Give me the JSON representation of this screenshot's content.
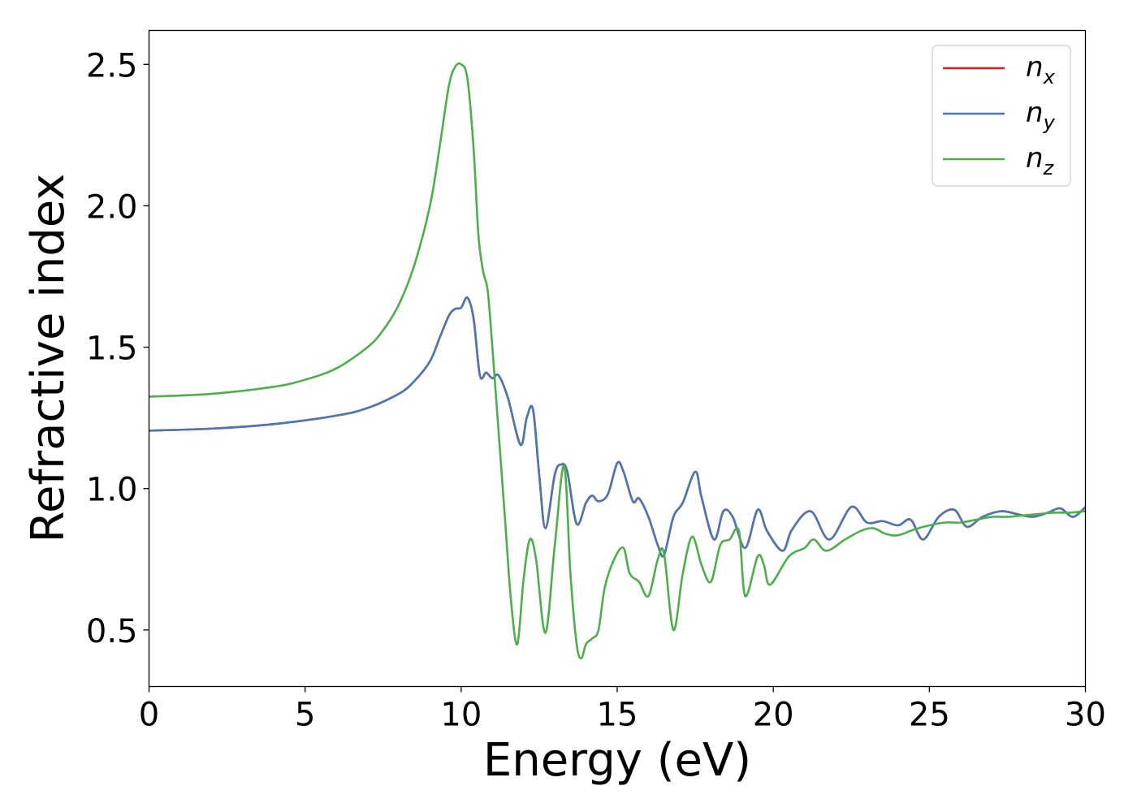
{
  "chart_data": {
    "type": "line",
    "xlabel": "Energy (eV)",
    "ylabel": "Refractive index",
    "xlim": [
      0,
      30
    ],
    "ylim": [
      0.3,
      2.62
    ],
    "xticks": [
      "0",
      "5",
      "10",
      "15",
      "20",
      "25",
      "30"
    ],
    "yticks": [
      "0.5",
      "1.0",
      "1.5",
      "2.0",
      "2.5"
    ],
    "grid": false,
    "legend_position": "top-right",
    "series": [
      {
        "name": "n",
        "subscript": "x",
        "color": "#e41a1c",
        "points": [
          [
            0,
            1.205
          ],
          [
            2,
            1.212
          ],
          [
            4,
            1.228
          ],
          [
            6,
            1.258
          ],
          [
            7,
            1.285
          ],
          [
            8,
            1.335
          ],
          [
            8.5,
            1.38
          ],
          [
            9,
            1.45
          ],
          [
            9.3,
            1.53
          ],
          [
            9.6,
            1.61
          ],
          [
            9.8,
            1.635
          ],
          [
            10,
            1.64
          ],
          [
            10.2,
            1.675
          ],
          [
            10.4,
            1.6
          ],
          [
            10.6,
            1.4
          ],
          [
            10.8,
            1.41
          ],
          [
            11,
            1.39
          ],
          [
            11.2,
            1.4
          ],
          [
            11.5,
            1.32
          ],
          [
            11.9,
            1.155
          ],
          [
            12.1,
            1.25
          ],
          [
            12.3,
            1.28
          ],
          [
            12.5,
            1.05
          ],
          [
            12.7,
            0.86
          ],
          [
            13,
            1.05
          ],
          [
            13.2,
            1.085
          ],
          [
            13.4,
            1.06
          ],
          [
            13.7,
            0.875
          ],
          [
            14,
            0.95
          ],
          [
            14.2,
            0.975
          ],
          [
            14.4,
            0.955
          ],
          [
            14.7,
            0.98
          ],
          [
            15,
            1.09
          ],
          [
            15.2,
            1.06
          ],
          [
            15.5,
            0.955
          ],
          [
            15.7,
            0.965
          ],
          [
            16,
            0.9
          ],
          [
            16.3,
            0.8
          ],
          [
            16.5,
            0.765
          ],
          [
            16.8,
            0.9
          ],
          [
            17.1,
            0.95
          ],
          [
            17.5,
            1.06
          ],
          [
            17.7,
            0.97
          ],
          [
            18.1,
            0.82
          ],
          [
            18.4,
            0.92
          ],
          [
            18.7,
            0.9
          ],
          [
            19.1,
            0.79
          ],
          [
            19.5,
            0.925
          ],
          [
            19.8,
            0.85
          ],
          [
            20.3,
            0.78
          ],
          [
            20.6,
            0.855
          ],
          [
            21.2,
            0.92
          ],
          [
            21.8,
            0.82
          ],
          [
            22.5,
            0.935
          ],
          [
            23,
            0.88
          ],
          [
            23.5,
            0.885
          ],
          [
            24,
            0.87
          ],
          [
            24.4,
            0.89
          ],
          [
            24.8,
            0.82
          ],
          [
            25.3,
            0.9
          ],
          [
            25.8,
            0.925
          ],
          [
            26.2,
            0.865
          ],
          [
            26.7,
            0.9
          ],
          [
            27.3,
            0.92
          ],
          [
            27.8,
            0.91
          ],
          [
            28.3,
            0.9
          ],
          [
            28.8,
            0.915
          ],
          [
            29.2,
            0.93
          ],
          [
            29.6,
            0.9
          ],
          [
            30,
            0.935
          ]
        ]
      },
      {
        "name": "n",
        "subscript": "y",
        "color": "#4a78b0",
        "points": [
          [
            0,
            1.205
          ],
          [
            2,
            1.212
          ],
          [
            4,
            1.228
          ],
          [
            6,
            1.258
          ],
          [
            7,
            1.285
          ],
          [
            8,
            1.335
          ],
          [
            8.5,
            1.38
          ],
          [
            9,
            1.45
          ],
          [
            9.3,
            1.53
          ],
          [
            9.6,
            1.61
          ],
          [
            9.8,
            1.635
          ],
          [
            10,
            1.64
          ],
          [
            10.2,
            1.675
          ],
          [
            10.4,
            1.6
          ],
          [
            10.6,
            1.4
          ],
          [
            10.8,
            1.41
          ],
          [
            11,
            1.39
          ],
          [
            11.2,
            1.4
          ],
          [
            11.5,
            1.32
          ],
          [
            11.9,
            1.155
          ],
          [
            12.1,
            1.25
          ],
          [
            12.3,
            1.28
          ],
          [
            12.5,
            1.05
          ],
          [
            12.7,
            0.86
          ],
          [
            13,
            1.05
          ],
          [
            13.2,
            1.085
          ],
          [
            13.4,
            1.06
          ],
          [
            13.7,
            0.875
          ],
          [
            14,
            0.95
          ],
          [
            14.2,
            0.975
          ],
          [
            14.4,
            0.955
          ],
          [
            14.7,
            0.98
          ],
          [
            15,
            1.09
          ],
          [
            15.2,
            1.06
          ],
          [
            15.5,
            0.955
          ],
          [
            15.7,
            0.965
          ],
          [
            16,
            0.9
          ],
          [
            16.3,
            0.8
          ],
          [
            16.5,
            0.765
          ],
          [
            16.8,
            0.9
          ],
          [
            17.1,
            0.95
          ],
          [
            17.5,
            1.06
          ],
          [
            17.7,
            0.97
          ],
          [
            18.1,
            0.82
          ],
          [
            18.4,
            0.92
          ],
          [
            18.7,
            0.9
          ],
          [
            19.1,
            0.79
          ],
          [
            19.5,
            0.925
          ],
          [
            19.8,
            0.85
          ],
          [
            20.3,
            0.78
          ],
          [
            20.6,
            0.855
          ],
          [
            21.2,
            0.92
          ],
          [
            21.8,
            0.82
          ],
          [
            22.5,
            0.935
          ],
          [
            23,
            0.88
          ],
          [
            23.5,
            0.885
          ],
          [
            24,
            0.87
          ],
          [
            24.4,
            0.89
          ],
          [
            24.8,
            0.82
          ],
          [
            25.3,
            0.9
          ],
          [
            25.8,
            0.925
          ],
          [
            26.2,
            0.865
          ],
          [
            26.7,
            0.9
          ],
          [
            27.3,
            0.92
          ],
          [
            27.8,
            0.91
          ],
          [
            28.3,
            0.9
          ],
          [
            28.8,
            0.915
          ],
          [
            29.2,
            0.93
          ],
          [
            29.6,
            0.9
          ],
          [
            30,
            0.935
          ]
        ]
      },
      {
        "name": "n",
        "subscript": "z",
        "color": "#4daf4a",
        "points": [
          [
            0,
            1.325
          ],
          [
            2,
            1.335
          ],
          [
            4,
            1.36
          ],
          [
            5,
            1.385
          ],
          [
            6,
            1.425
          ],
          [
            7,
            1.5
          ],
          [
            7.5,
            1.56
          ],
          [
            8,
            1.65
          ],
          [
            8.5,
            1.79
          ],
          [
            9,
            2.0
          ],
          [
            9.3,
            2.2
          ],
          [
            9.6,
            2.42
          ],
          [
            9.8,
            2.49
          ],
          [
            10,
            2.5
          ],
          [
            10.2,
            2.45
          ],
          [
            10.4,
            2.2
          ],
          [
            10.55,
            1.9
          ],
          [
            10.7,
            1.77
          ],
          [
            10.85,
            1.7
          ],
          [
            11,
            1.5
          ],
          [
            11.2,
            1.2
          ],
          [
            11.4,
            0.9
          ],
          [
            11.6,
            0.6
          ],
          [
            11.8,
            0.45
          ],
          [
            12,
            0.68
          ],
          [
            12.2,
            0.82
          ],
          [
            12.4,
            0.75
          ],
          [
            12.7,
            0.49
          ],
          [
            13,
            0.8
          ],
          [
            13.3,
            1.08
          ],
          [
            13.5,
            0.7
          ],
          [
            13.7,
            0.45
          ],
          [
            13.85,
            0.4
          ],
          [
            14,
            0.45
          ],
          [
            14.2,
            0.47
          ],
          [
            14.4,
            0.5
          ],
          [
            14.6,
            0.65
          ],
          [
            14.9,
            0.75
          ],
          [
            15.2,
            0.79
          ],
          [
            15.4,
            0.7
          ],
          [
            15.7,
            0.67
          ],
          [
            16,
            0.62
          ],
          [
            16.3,
            0.75
          ],
          [
            16.5,
            0.77
          ],
          [
            16.8,
            0.5
          ],
          [
            17.1,
            0.7
          ],
          [
            17.4,
            0.83
          ],
          [
            17.7,
            0.73
          ],
          [
            18,
            0.67
          ],
          [
            18.3,
            0.8
          ],
          [
            18.6,
            0.82
          ],
          [
            18.9,
            0.85
          ],
          [
            19.1,
            0.62
          ],
          [
            19.5,
            0.76
          ],
          [
            19.7,
            0.73
          ],
          [
            19.9,
            0.66
          ],
          [
            20.5,
            0.76
          ],
          [
            21,
            0.79
          ],
          [
            21.3,
            0.82
          ],
          [
            21.7,
            0.78
          ],
          [
            22.3,
            0.82
          ],
          [
            22.8,
            0.85
          ],
          [
            23.2,
            0.86
          ],
          [
            23.6,
            0.84
          ],
          [
            24,
            0.835
          ],
          [
            24.5,
            0.855
          ],
          [
            25,
            0.87
          ],
          [
            25.5,
            0.88
          ],
          [
            26,
            0.88
          ],
          [
            26.5,
            0.89
          ],
          [
            27,
            0.9
          ],
          [
            27.5,
            0.9
          ],
          [
            28,
            0.905
          ],
          [
            28.5,
            0.91
          ],
          [
            29,
            0.915
          ],
          [
            29.5,
            0.915
          ],
          [
            30,
            0.92
          ]
        ]
      }
    ]
  }
}
